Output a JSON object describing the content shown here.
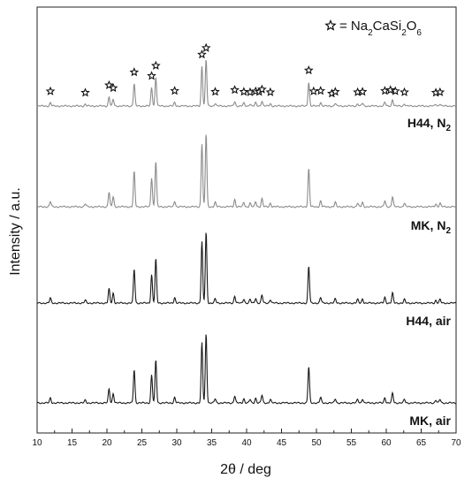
{
  "chart_data": {
    "type": "line",
    "xlabel": "2θ / deg",
    "ylabel": "Intensity / a.u.",
    "xlim": [
      10,
      70
    ],
    "x_ticks": [
      10,
      15,
      20,
      25,
      30,
      35,
      40,
      45,
      50,
      55,
      60,
      65,
      70
    ],
    "grid": false,
    "legend": {
      "symbol": "star-icon",
      "text": "= Na2CaSi2O6",
      "placement": "top-right"
    },
    "star_marker_positions": [
      11.9,
      16.9,
      20.3,
      20.9,
      23.9,
      26.4,
      27.0,
      29.7,
      33.6,
      34.2,
      35.5,
      38.3,
      39.6,
      40.5,
      41.3,
      41.8,
      42.2,
      43.4,
      48.9,
      49.6,
      50.6,
      52.2,
      52.7,
      55.9,
      56.6,
      59.8,
      60.6,
      61.3,
      62.6,
      67.1,
      67.7
    ],
    "peaks": [
      {
        "pos": 11.9,
        "h": 7
      },
      {
        "pos": 16.9,
        "h": 4
      },
      {
        "pos": 20.3,
        "h": 20
      },
      {
        "pos": 20.9,
        "h": 14
      },
      {
        "pos": 23.9,
        "h": 48
      },
      {
        "pos": 26.4,
        "h": 40
      },
      {
        "pos": 27.0,
        "h": 62
      },
      {
        "pos": 29.7,
        "h": 8
      },
      {
        "pos": 33.6,
        "h": 86
      },
      {
        "pos": 34.2,
        "h": 100
      },
      {
        "pos": 35.5,
        "h": 6
      },
      {
        "pos": 38.3,
        "h": 10
      },
      {
        "pos": 39.6,
        "h": 6
      },
      {
        "pos": 40.5,
        "h": 5
      },
      {
        "pos": 41.3,
        "h": 7
      },
      {
        "pos": 42.2,
        "h": 11
      },
      {
        "pos": 43.4,
        "h": 5
      },
      {
        "pos": 48.9,
        "h": 52
      },
      {
        "pos": 50.6,
        "h": 8
      },
      {
        "pos": 52.7,
        "h": 6
      },
      {
        "pos": 55.9,
        "h": 5
      },
      {
        "pos": 56.6,
        "h": 6
      },
      {
        "pos": 59.8,
        "h": 8
      },
      {
        "pos": 60.9,
        "h": 14
      },
      {
        "pos": 62.6,
        "h": 5
      },
      {
        "pos": 67.1,
        "h": 4
      },
      {
        "pos": 67.7,
        "h": 5
      }
    ],
    "series": [
      {
        "name": "H44, N2",
        "label_base": "H44, N",
        "label_sub": "2",
        "color": "#8c8c8c",
        "scale": 0.62,
        "offset": 0
      },
      {
        "name": "MK, N2",
        "label_base": "MK, N",
        "label_sub": "2",
        "color": "#8c8c8c",
        "scale": 0.98,
        "offset": 0
      },
      {
        "name": "H44, air",
        "label_base": "H44, air",
        "label_sub": "",
        "color": "#1a1a1a",
        "scale": 0.95,
        "offset": 0
      },
      {
        "name": "MK, air",
        "label_base": "MK, air",
        "label_sub": "",
        "color": "#1a1a1a",
        "scale": 0.93,
        "offset": 0
      }
    ]
  }
}
